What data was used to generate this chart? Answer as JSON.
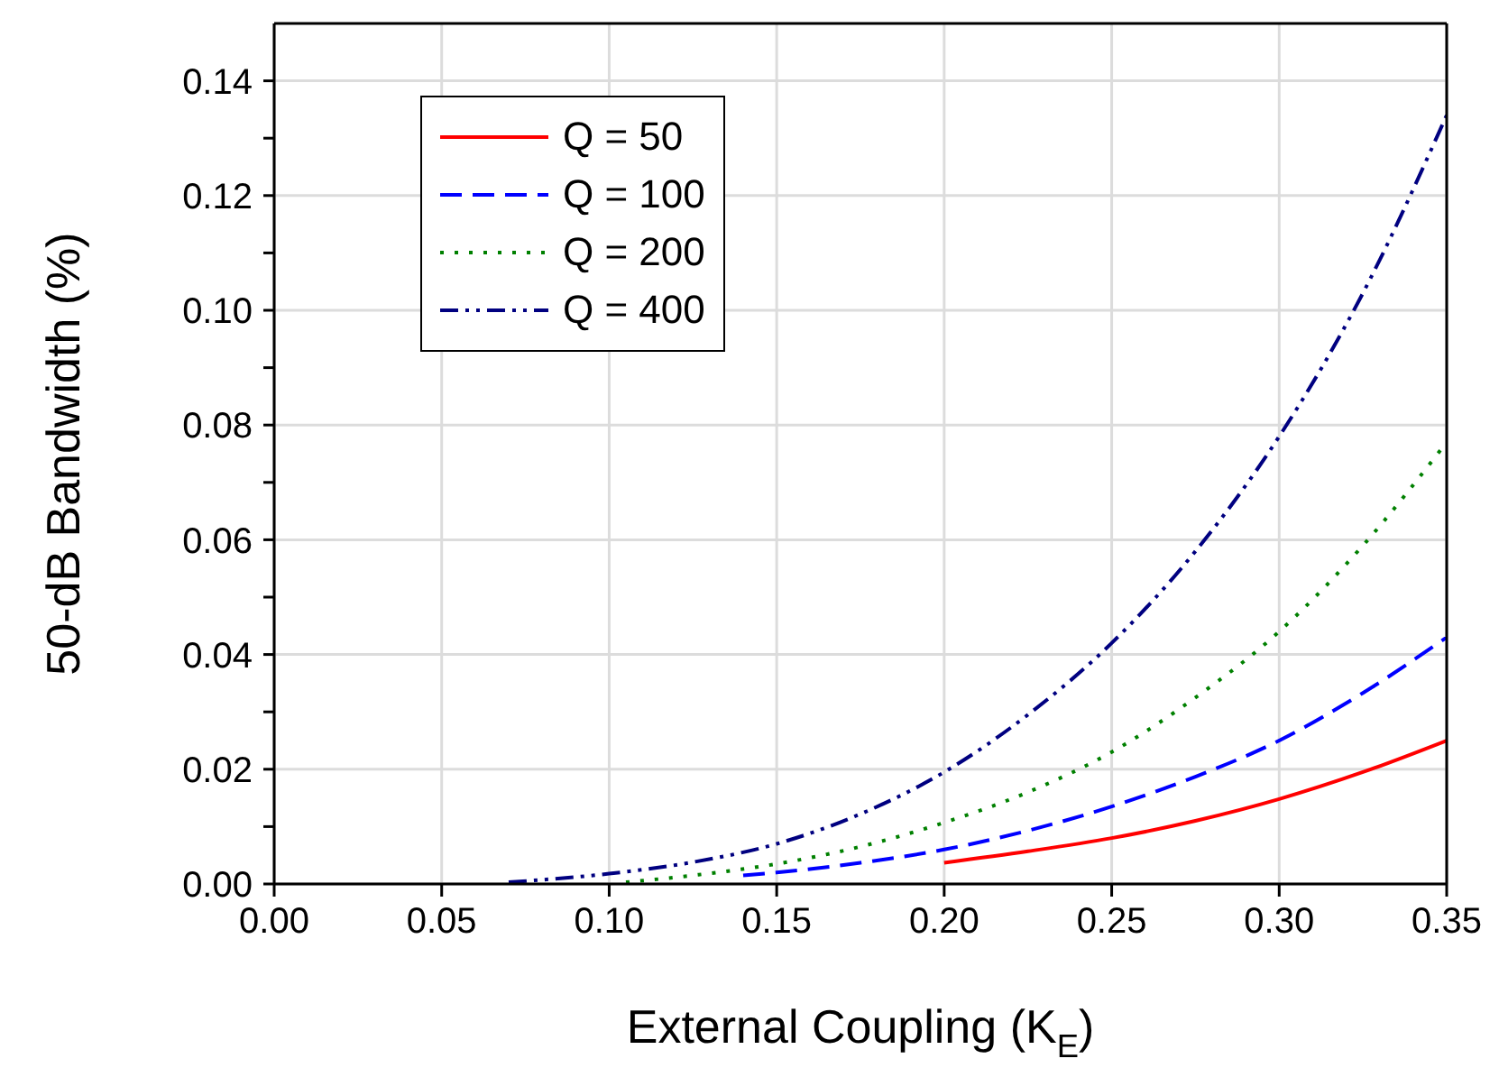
{
  "chart_data": {
    "type": "line",
    "xlabel": "External Coupling (K$_{E}$)",
    "ylabel": "50-dB Bandwidth (%)",
    "xlim": [
      0,
      0.35
    ],
    "xticks": [
      {
        "value": 0,
        "label": "0.00"
      },
      0.05,
      {
        "value": 0.1,
        "label": "0.10"
      },
      0.15,
      {
        "value": 0.2,
        "label": "0.20"
      },
      0.25,
      {
        "value": 0.3,
        "label": "0.30"
      },
      0.35
    ],
    "ylim": [
      0,
      0.15
    ],
    "yticks": [
      {
        "value": 0,
        "label": "0.00"
      },
      {
        "value": 0.01,
        "label": null
      },
      0.02,
      {
        "value": 0.03,
        "label": null
      },
      0.04,
      {
        "value": 0.05,
        "label": null
      },
      0.06,
      {
        "value": 0.07,
        "label": null
      },
      0.08,
      {
        "value": 0.09,
        "label": null
      },
      {
        "value": 0.1,
        "label": "0.10"
      },
      {
        "value": 0.11,
        "label": null
      },
      0.12,
      {
        "value": 0.13,
        "label": null
      },
      0.14
    ],
    "grid": true,
    "legend": "top left",
    "marker": "none",
    "series": [
      {
        "name": "Q = 50",
        "color": "#ff0000",
        "line_style": "solid",
        "x": [
          0.2,
          0.225,
          0.25,
          0.275,
          0.3,
          0.325,
          0.35
        ],
        "values": [
          0.0037,
          0.0057,
          0.008,
          0.011,
          0.0148,
          0.0195,
          0.025
        ]
      },
      {
        "name": "Q = 100",
        "color": "#0000ff",
        "line_style": "dashed",
        "x": [
          0.14,
          0.15,
          0.175,
          0.2,
          0.225,
          0.25,
          0.275,
          0.3,
          0.325,
          0.35
        ],
        "values": [
          0.0015,
          0.002,
          0.0037,
          0.006,
          0.0093,
          0.0135,
          0.0187,
          0.025,
          0.0333,
          0.043
        ]
      },
      {
        "name": "Q = 200",
        "color": "#008000",
        "line_style": "dotted",
        "x": [
          0.105,
          0.125,
          0.15,
          0.175,
          0.2,
          0.225,
          0.25,
          0.275,
          0.3,
          0.325,
          0.35
        ],
        "values": [
          0.0003,
          0.0015,
          0.0035,
          0.0065,
          0.0107,
          0.016,
          0.023,
          0.0325,
          0.044,
          0.059,
          0.077
        ]
      },
      {
        "name": "Q = 400",
        "color": "#000080",
        "line_style": "dashdot",
        "x": [
          0.07,
          0.1,
          0.125,
          0.15,
          0.175,
          0.2,
          0.225,
          0.25,
          0.275,
          0.3,
          0.325,
          0.35
        ],
        "values": [
          0.0003,
          0.0018,
          0.0038,
          0.007,
          0.0122,
          0.0195,
          0.0295,
          0.042,
          0.058,
          0.078,
          0.103,
          0.134
        ]
      }
    ]
  }
}
